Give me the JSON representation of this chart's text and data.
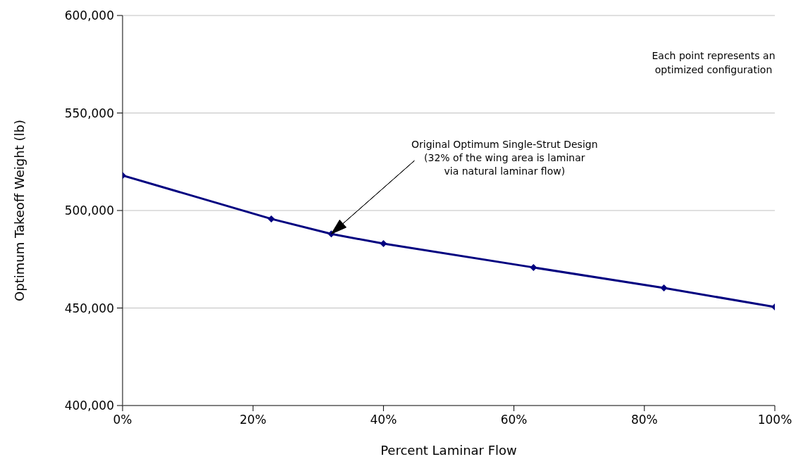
{
  "chart_data": {
    "type": "line",
    "xlabel": "Percent Laminar Flow",
    "ylabel": "Optimum Takeoff Weight (lb)",
    "x": [
      0,
      22.8,
      32,
      40,
      63,
      83,
      100
    ],
    "series": [
      {
        "color": "#000080",
        "values": [
          518000,
          495700,
          488000,
          483000,
          470800,
          460300,
          450500
        ]
      }
    ],
    "xlim": [
      0,
      100
    ],
    "xticks": [
      {
        "value": 0,
        "label": "0%"
      },
      {
        "value": 20,
        "label": "20%"
      },
      {
        "value": 40,
        "label": "40%"
      },
      {
        "value": 60,
        "label": "60%"
      },
      {
        "value": 80,
        "label": "80%"
      },
      {
        "value": 100,
        "label": "100%"
      }
    ],
    "ylim": [
      400000,
      600000
    ],
    "yticks": [
      {
        "value": 400000,
        "label": "400,000"
      },
      {
        "value": 450000,
        "label": "450,000"
      },
      {
        "value": 500000,
        "label": "500,000"
      },
      {
        "value": 550000,
        "label": "550,000"
      },
      {
        "value": 600000,
        "label": "600,000"
      }
    ],
    "grid": "y",
    "marker": "diamond",
    "line_style": "solid",
    "annotations": [
      "Each point represents an optimized configuration",
      "Original Optimum Single-Strut Design\n(32% of the wing area is laminar\nvia natural laminar flow)"
    ]
  }
}
